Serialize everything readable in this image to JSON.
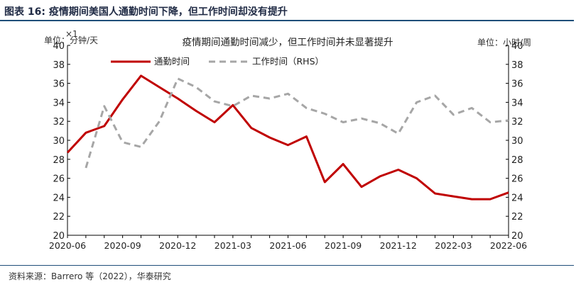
{
  "figure": {
    "title": "图表 16:  疫情期间美国人通勤时间下降，但工作时间却没有提升",
    "source": "资料来源：Barrero 等（2022），华泰研究"
  },
  "chart_data": {
    "type": "line",
    "title": "疫情期间通勤时间减少，但工作时间并未显著提升",
    "left_unit": "单位：分钟/天",
    "left_multiplier": "×1",
    "right_unit": "单位：小时/周",
    "x": [
      "2020-06",
      "2020-07",
      "2020-08",
      "2020-09",
      "2020-10",
      "2020-11",
      "2020-12",
      "2021-01",
      "2021-02",
      "2021-03",
      "2021-04",
      "2021-05",
      "2021-06",
      "2021-07",
      "2021-08",
      "2021-09",
      "2021-10",
      "2021-11",
      "2021-12",
      "2022-01",
      "2022-02",
      "2022-03",
      "2022-04",
      "2022-05",
      "2022-06"
    ],
    "x_tick_labels": [
      "2020-06",
      "2020-09",
      "2020-12",
      "2021-03",
      "2021-06",
      "2021-09",
      "2021-12",
      "2022-03",
      "2022-06"
    ],
    "y_left": {
      "ylim": [
        20,
        40
      ],
      "ticks": [
        20,
        22,
        24,
        26,
        28,
        30,
        32,
        34,
        36,
        38,
        40
      ]
    },
    "y_right": {
      "ylim": [
        20,
        40
      ],
      "ticks": [
        20,
        22,
        24,
        26,
        28,
        30,
        32,
        34,
        36,
        38,
        40
      ]
    },
    "series": [
      {
        "name": "通勤时间",
        "axis": "left",
        "style": "solid",
        "color": "#c00000",
        "values": [
          28.7,
          30.8,
          31.5,
          34.3,
          36.8,
          35.6,
          34.4,
          33.1,
          31.9,
          33.7,
          31.3,
          30.3,
          29.5,
          30.4,
          25.6,
          27.5,
          25.1,
          26.2,
          26.9,
          26.0,
          24.4,
          24.1,
          23.8,
          23.8,
          24.5
        ]
      },
      {
        "name": "工作时间（RHS）",
        "axis": "right",
        "style": "dashed",
        "color": "#a6a6a6",
        "values": [
          null,
          27.1,
          33.6,
          29.8,
          29.3,
          32.0,
          36.5,
          35.6,
          34.1,
          33.6,
          34.7,
          34.4,
          34.9,
          33.4,
          32.8,
          31.9,
          32.3,
          31.8,
          30.7,
          34.0,
          34.7,
          32.7,
          33.4,
          31.9,
          32.1
        ]
      }
    ],
    "legend_position": "top-left",
    "grid": false
  }
}
